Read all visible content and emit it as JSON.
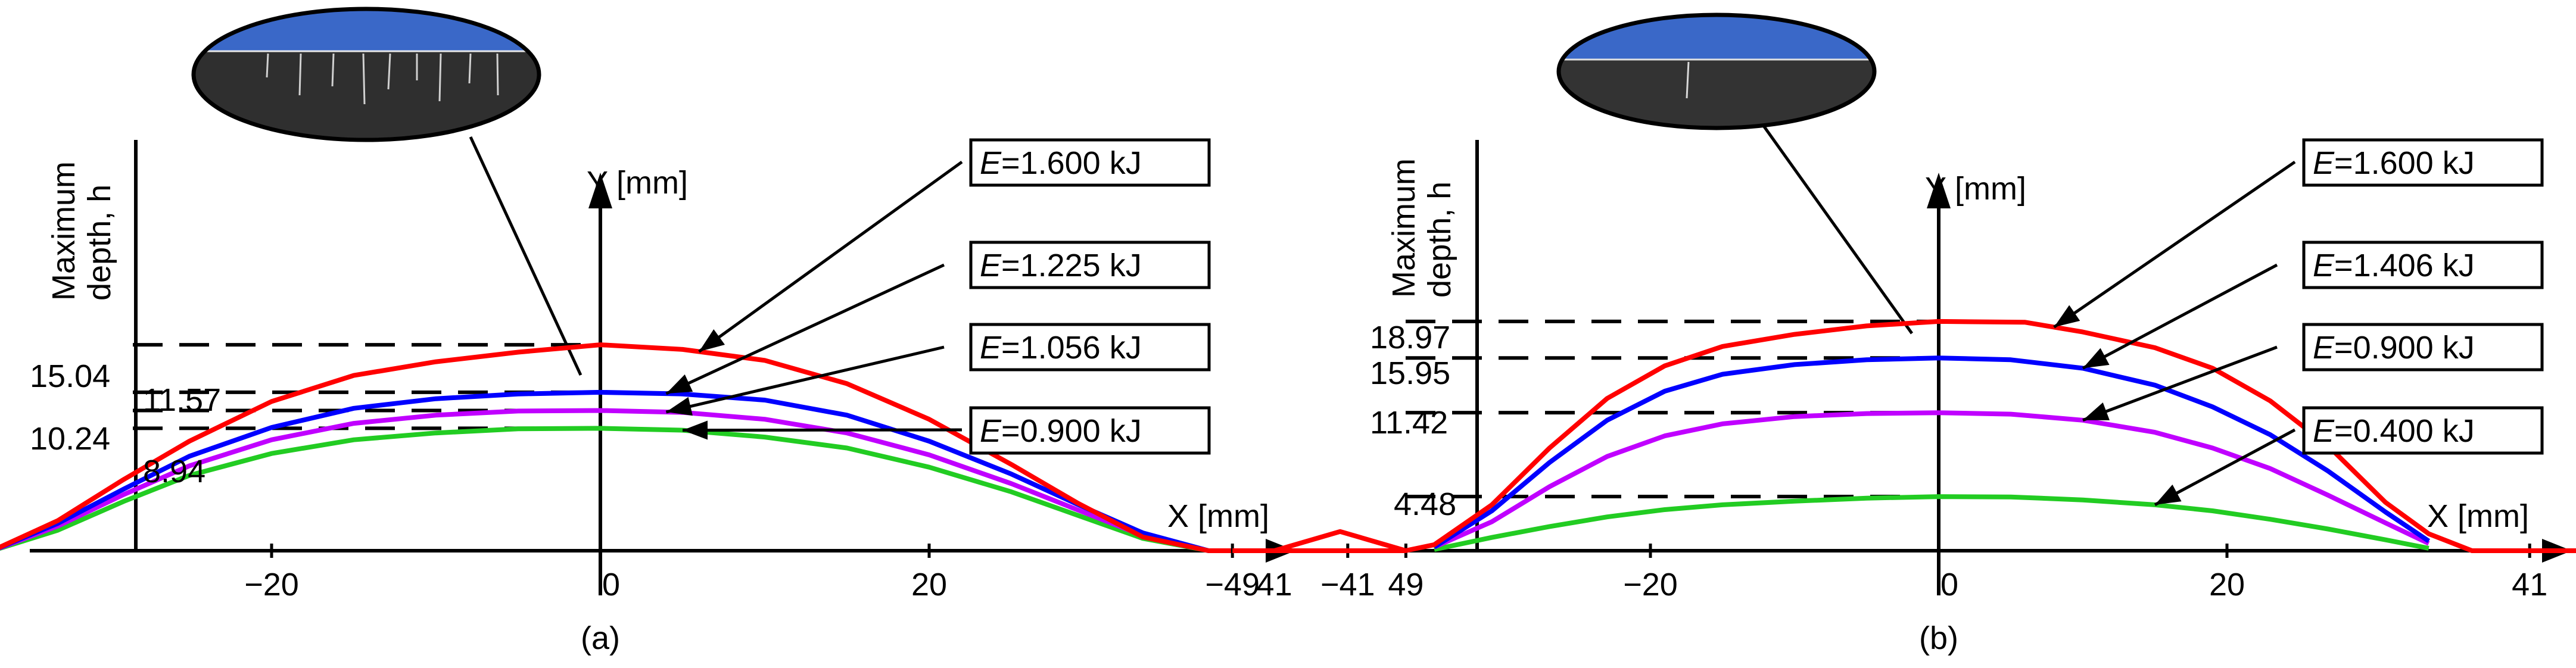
{
  "chart_data": [
    {
      "panel": "(a)",
      "type": "line",
      "xlabel": "X [mm]",
      "ylabel_axis": "Y [mm]",
      "side_label_1": "Maximum",
      "side_label_2": "depth, h",
      "x_ticks": [
        "−49",
        "−41",
        "−20",
        "0",
        "20",
        "41",
        "49"
      ],
      "x_tick_values": [
        -49,
        -41,
        -20,
        0,
        20,
        41,
        49
      ],
      "xlim": [
        -49,
        55
      ],
      "ylim": [
        0,
        25
      ],
      "depth_labels": [
        "15.04",
        "11.57",
        "10.24",
        "8.94"
      ],
      "depth_values": [
        15.04,
        11.57,
        10.24,
        8.94
      ],
      "series": [
        {
          "name": "1.600 kJ",
          "color": "#ff0000",
          "peak": 15.04,
          "x": [
            -49,
            -45.5,
            -41,
            -37,
            -33,
            -29,
            -25,
            -20,
            -15,
            -10,
            -5,
            0,
            5,
            10,
            15,
            20,
            25,
            29,
            33,
            37,
            41,
            45,
            49
          ],
          "y": [
            0,
            1.6,
            0,
            0,
            2.2,
            5.2,
            8.0,
            10.9,
            12.8,
            13.8,
            14.5,
            15.04,
            14.7,
            13.9,
            12.2,
            9.6,
            6.3,
            3.5,
            1.0,
            0,
            0,
            1.4,
            0
          ]
        },
        {
          "name": "1.225 kJ",
          "color": "#0000ff",
          "peak": 11.57,
          "x": [
            -37,
            -33,
            -29,
            -25,
            -20,
            -15,
            -10,
            -5,
            0,
            5,
            10,
            15,
            20,
            25,
            29,
            33,
            37
          ],
          "y": [
            0,
            2.0,
            4.5,
            6.9,
            9.0,
            10.4,
            11.1,
            11.45,
            11.57,
            11.45,
            11.0,
            9.9,
            8.0,
            5.6,
            3.4,
            1.3,
            0
          ]
        },
        {
          "name": "1.056 kJ",
          "color": "#c000ff",
          "peak": 10.24,
          "x": [
            -37,
            -33,
            -29,
            -25,
            -20,
            -15,
            -10,
            -5,
            0,
            5,
            10,
            15,
            20,
            25,
            29,
            33,
            37
          ],
          "y": [
            0,
            1.8,
            4.1,
            6.2,
            8.1,
            9.3,
            9.9,
            10.2,
            10.24,
            10.1,
            9.6,
            8.6,
            7.0,
            4.9,
            3.0,
            1.1,
            0
          ]
        },
        {
          "name": "0.900 kJ",
          "color": "#22cc22",
          "peak": 8.94,
          "x": [
            -37,
            -33,
            -29,
            -25,
            -20,
            -15,
            -10,
            -5,
            0,
            5,
            10,
            15,
            20,
            25,
            29,
            33,
            37
          ],
          "y": [
            0,
            1.5,
            3.6,
            5.5,
            7.1,
            8.1,
            8.6,
            8.9,
            8.94,
            8.8,
            8.3,
            7.5,
            6.1,
            4.3,
            2.6,
            0.9,
            0
          ]
        }
      ],
      "legend": [
        "1.600 kJ",
        "1.225 kJ",
        "1.056 kJ",
        "0.900 kJ"
      ]
    },
    {
      "panel": "(b)",
      "type": "line",
      "xlabel": "X [mm]",
      "ylabel_axis": "Y [mm]",
      "side_label_1": "Maximum",
      "side_label_2": "depth, h",
      "x_ticks": [
        "−49",
        "−41",
        "−20",
        "0",
        "20",
        "41",
        "49"
      ],
      "x_tick_values": [
        -49,
        -41,
        -20,
        0,
        20,
        41,
        49
      ],
      "xlim": [
        -49,
        55
      ],
      "ylim": [
        0,
        25
      ],
      "depth_labels": [
        "18.97",
        "15.95",
        "11.42",
        "4.48"
      ],
      "depth_values": [
        18.97,
        15.95,
        11.42,
        4.48
      ],
      "series": [
        {
          "name": "1.600 kJ",
          "color": "#ff0000",
          "peak": 18.97,
          "x": [
            -49,
            -41,
            -37,
            -35,
            -31,
            -27,
            -23,
            -19,
            -15,
            -10,
            -5,
            0,
            6,
            10,
            15,
            19,
            23,
            27,
            31,
            34,
            37,
            41,
            49
          ],
          "y": [
            0,
            0,
            0,
            0.5,
            3.8,
            8.5,
            12.6,
            15.3,
            16.9,
            17.9,
            18.6,
            18.97,
            18.9,
            18.1,
            16.8,
            15.1,
            12.4,
            8.7,
            4.0,
            1.4,
            0,
            0,
            0
          ]
        },
        {
          "name": "1.406 kJ",
          "color": "#0000ff",
          "peak": 15.95,
          "x": [
            -35,
            -31,
            -27,
            -23,
            -19,
            -15,
            -10,
            -5,
            0,
            5,
            10,
            15,
            19,
            23,
            27,
            31,
            34
          ],
          "y": [
            0.3,
            3.3,
            7.3,
            10.8,
            13.2,
            14.6,
            15.4,
            15.8,
            15.95,
            15.8,
            15.1,
            13.7,
            11.9,
            9.6,
            6.6,
            3.2,
            0.8
          ]
        },
        {
          "name": "0.900 kJ",
          "color": "#c000ff",
          "peak": 11.42,
          "x": [
            -35,
            -31,
            -27,
            -23,
            -19,
            -15,
            -10,
            -5,
            0,
            5,
            10,
            15,
            19,
            23,
            27,
            31,
            34
          ],
          "y": [
            0.3,
            2.4,
            5.3,
            7.8,
            9.5,
            10.5,
            11.1,
            11.35,
            11.42,
            11.3,
            10.8,
            9.8,
            8.5,
            6.8,
            4.6,
            2.3,
            0.6
          ]
        },
        {
          "name": "0.400 kJ",
          "color": "#22cc22",
          "peak": 4.48,
          "x": [
            -35,
            -31,
            -27,
            -23,
            -19,
            -15,
            -10,
            -5,
            0,
            5,
            10,
            15,
            19,
            23,
            27,
            31,
            34
          ],
          "y": [
            0.1,
            1.1,
            2.0,
            2.8,
            3.4,
            3.8,
            4.1,
            4.35,
            4.48,
            4.45,
            4.2,
            3.8,
            3.3,
            2.6,
            1.8,
            0.9,
            0.2
          ]
        }
      ],
      "legend": [
        "1.600 kJ",
        "1.406 kJ",
        "0.900 kJ",
        "0.400 kJ"
      ]
    }
  ]
}
